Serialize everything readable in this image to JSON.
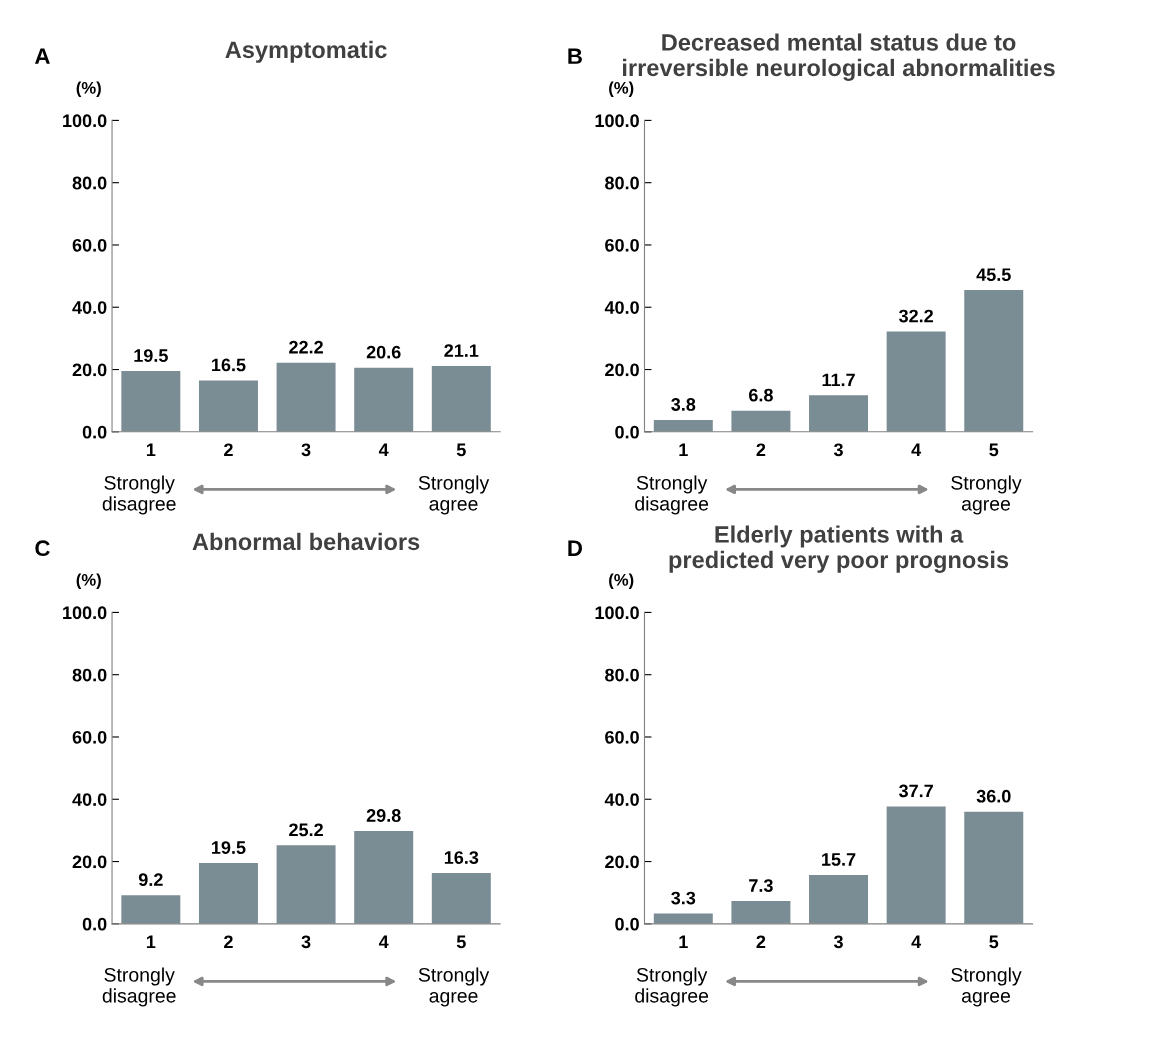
{
  "chart_data": [
    {
      "type": "bar",
      "title": "Asymptomatic",
      "ylabel": "(%)",
      "categories": [
        "1",
        "2",
        "3",
        "4",
        "5"
      ],
      "values": [
        19.5,
        16.5,
        22.2,
        20.6,
        21.1
      ],
      "color": "#7a8c94",
      "data_labels": true,
      "ylim": [
        0,
        100
      ],
      "yticks": [
        {
          "value": 0,
          "label": "0.0"
        },
        {
          "value": 20,
          "label": "20.0"
        },
        {
          "value": 40,
          "label": "40.0"
        },
        {
          "value": 60,
          "label": "60.0"
        },
        {
          "value": 80,
          "label": "80.0"
        },
        {
          "value": 100,
          "label": "100.0"
        }
      ],
      "grid": false,
      "legend": false,
      "annotations": [
        "A",
        "Strongly\ndisagree",
        "Strongly\nagree"
      ]
    },
    {
      "type": "bar",
      "title": "Decreased mental status due to\nirreversible neurological abnormalities",
      "ylabel": "(%)",
      "categories": [
        "1",
        "2",
        "3",
        "4",
        "5"
      ],
      "values": [
        3.8,
        6.8,
        11.7,
        32.2,
        45.5
      ],
      "color": "#7a8c94",
      "data_labels": true,
      "ylim": [
        0,
        100
      ],
      "yticks": [
        {
          "value": 0,
          "label": "0.0"
        },
        {
          "value": 20,
          "label": "20.0"
        },
        {
          "value": 40,
          "label": "40.0"
        },
        {
          "value": 60,
          "label": "60.0"
        },
        {
          "value": 80,
          "label": "80.0"
        },
        {
          "value": 100,
          "label": "100.0"
        }
      ],
      "grid": false,
      "legend": false,
      "annotations": [
        "B",
        "Strongly\ndisagree",
        "Strongly\nagree"
      ]
    },
    {
      "type": "bar",
      "title": "Abnormal behaviors",
      "ylabel": "(%)",
      "categories": [
        "1",
        "2",
        "3",
        "4",
        "5"
      ],
      "values": [
        9.2,
        19.5,
        25.2,
        29.8,
        16.3
      ],
      "color": "#7a8c94",
      "data_labels": true,
      "ylim": [
        0,
        100
      ],
      "yticks": [
        {
          "value": 0,
          "label": "0.0"
        },
        {
          "value": 20,
          "label": "20.0"
        },
        {
          "value": 40,
          "label": "40.0"
        },
        {
          "value": 60,
          "label": "60.0"
        },
        {
          "value": 80,
          "label": "80.0"
        },
        {
          "value": 100,
          "label": "100.0"
        }
      ],
      "grid": false,
      "legend": false,
      "annotations": [
        "C",
        "Strongly\ndisagree",
        "Strongly\nagree"
      ]
    },
    {
      "type": "bar",
      "title": "Elderly patients with a\npredicted very poor prognosis",
      "ylabel": "(%)",
      "categories": [
        "1",
        "2",
        "3",
        "4",
        "5"
      ],
      "values": [
        3.3,
        7.3,
        15.7,
        37.7,
        36.0
      ],
      "value_labels": [
        "3.3",
        "7.3",
        "15.7",
        "37.7",
        "36.0"
      ],
      "color": "#7a8c94",
      "ylim": [
        0,
        100
      ],
      "yticks": [
        {
          "value": 0,
          "label": "0.0"
        },
        {
          "value": 20,
          "label": "20.0"
        },
        {
          "value": 40,
          "label": "40.0"
        },
        {
          "value": 60,
          "label": "60.0"
        },
        {
          "value": 80,
          "label": "80.0"
        },
        {
          "value": 100,
          "label": "100.0"
        }
      ],
      "grid": false,
      "legend": false,
      "annotations": [
        "D",
        "Strongly\ndisagree",
        "Strongly\nagree"
      ]
    }
  ]
}
